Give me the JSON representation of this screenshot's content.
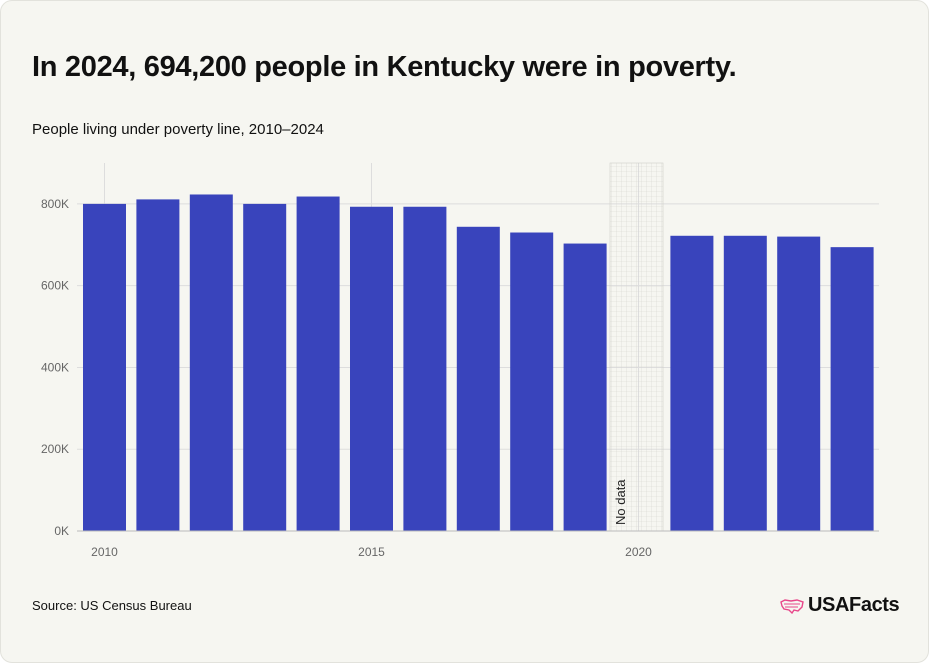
{
  "title": "In 2024, 694,200 people in Kentucky were in poverty.",
  "subtitle": "People living under poverty line, 2010–2024",
  "source": "Source: US Census Bureau",
  "brand": "USAFacts",
  "colors": {
    "bar": "#3944bc",
    "background": "#f6f6f1",
    "grid": "#dddddd",
    "brand_accent": "#e8468a"
  },
  "icons": {
    "brand": "us-map-flag-icon"
  },
  "chart_data": {
    "type": "bar",
    "title": "",
    "xlabel": "",
    "ylabel": "",
    "x": [
      2010,
      2011,
      2012,
      2013,
      2014,
      2015,
      2016,
      2017,
      2018,
      2019,
      2020,
      2021,
      2022,
      2023,
      2024
    ],
    "values": [
      800000,
      811000,
      823000,
      800000,
      818000,
      793000,
      793000,
      744000,
      730000,
      703000,
      null,
      722000,
      722000,
      720000,
      694200
    ],
    "ylim": [
      0,
      900000
    ],
    "yticks": [
      0,
      200000,
      400000,
      600000,
      800000
    ],
    "ytick_labels": [
      "0K",
      "200K",
      "400K",
      "600K",
      "800K"
    ],
    "xticks": [
      2010,
      2015,
      2020
    ],
    "xtick_labels": [
      "2010",
      "2015",
      "2020"
    ],
    "annotations": [
      {
        "x": 2020,
        "text": "No data"
      }
    ],
    "grid": true,
    "legend": "none"
  }
}
